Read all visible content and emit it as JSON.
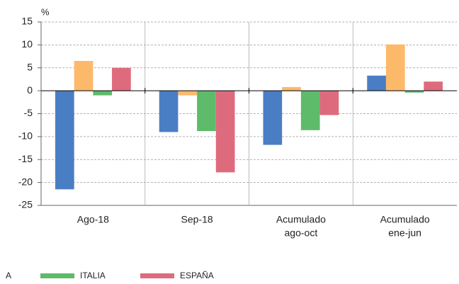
{
  "chart_data": {
    "type": "bar",
    "unit_label": "%",
    "categories": [
      [
        "Ago-18"
      ],
      [
        "Sep-18"
      ],
      [
        "Acumulado",
        "ago-oct"
      ],
      [
        "Acumulado",
        "ene-jun"
      ]
    ],
    "series": [
      {
        "name": null,
        "color": "#4a7ec4",
        "values": [
          -21.5,
          -9,
          -11.8,
          3.3
        ]
      },
      {
        "name": "A",
        "color": "#fdb96a",
        "values": [
          6.5,
          -1,
          0.8,
          10.1
        ]
      },
      {
        "name": "ITALIA",
        "color": "#5dbb6a",
        "values": [
          -1,
          -8.8,
          -8.6,
          -0.4
        ]
      },
      {
        "name": "ESPAÑA",
        "color": "#de6b7d",
        "values": [
          5,
          -17.8,
          -5.3,
          2
        ]
      }
    ],
    "ylim": [
      -25,
      15
    ],
    "yticks": [
      -25,
      -20,
      -15,
      -10,
      -5,
      0,
      5,
      10,
      15
    ],
    "grid": true
  }
}
